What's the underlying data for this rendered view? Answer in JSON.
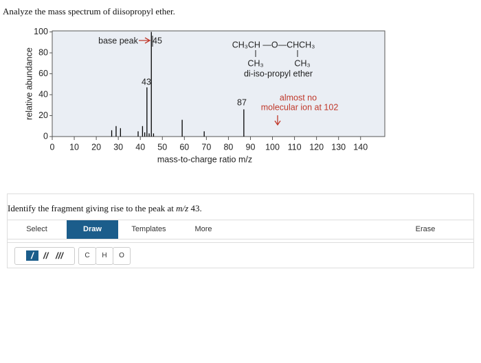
{
  "question": "Analyze the mass spectrum of diisopropyl ether.",
  "chart_data": {
    "type": "bar",
    "x": [
      27,
      29,
      31,
      39,
      41,
      42,
      43,
      44,
      45,
      46,
      59,
      69,
      87
    ],
    "values": [
      6,
      10,
      8,
      5,
      10,
      4,
      47,
      3,
      100,
      3,
      16,
      5,
      26
    ],
    "color": "#000000",
    "xlim": [
      0,
      151
    ],
    "ylim": [
      0,
      101
    ],
    "xticks": [
      0,
      10,
      20,
      30,
      40,
      50,
      60,
      70,
      80,
      90,
      100,
      110,
      120,
      130,
      140
    ],
    "yticks": [
      0,
      20,
      40,
      60,
      80,
      100
    ],
    "xlabel": "mass-to-charge ratio m/z",
    "ylabel": "relative abundance",
    "annotations": {
      "base_peak": "base peak",
      "peak_45": "45",
      "peak_43": "43",
      "peak_87": "87",
      "structure_main": "CH₃CH —O—CHCH₃",
      "structure_left": "CH₃",
      "structure_right": "CH₃",
      "compound": "di-iso-propyl ether",
      "note_line1": "almost no",
      "note_line2": "molecular ion at 102"
    }
  },
  "prompt": {
    "before": "Identify the fragment giving rise to the peak at ",
    "em": "m/z",
    "after": " 43."
  },
  "toolbar": {
    "select": "Select",
    "draw": "Draw",
    "templates": "Templates",
    "more": "More",
    "erase": "Erase"
  },
  "atoms": [
    "C",
    "H",
    "O"
  ]
}
